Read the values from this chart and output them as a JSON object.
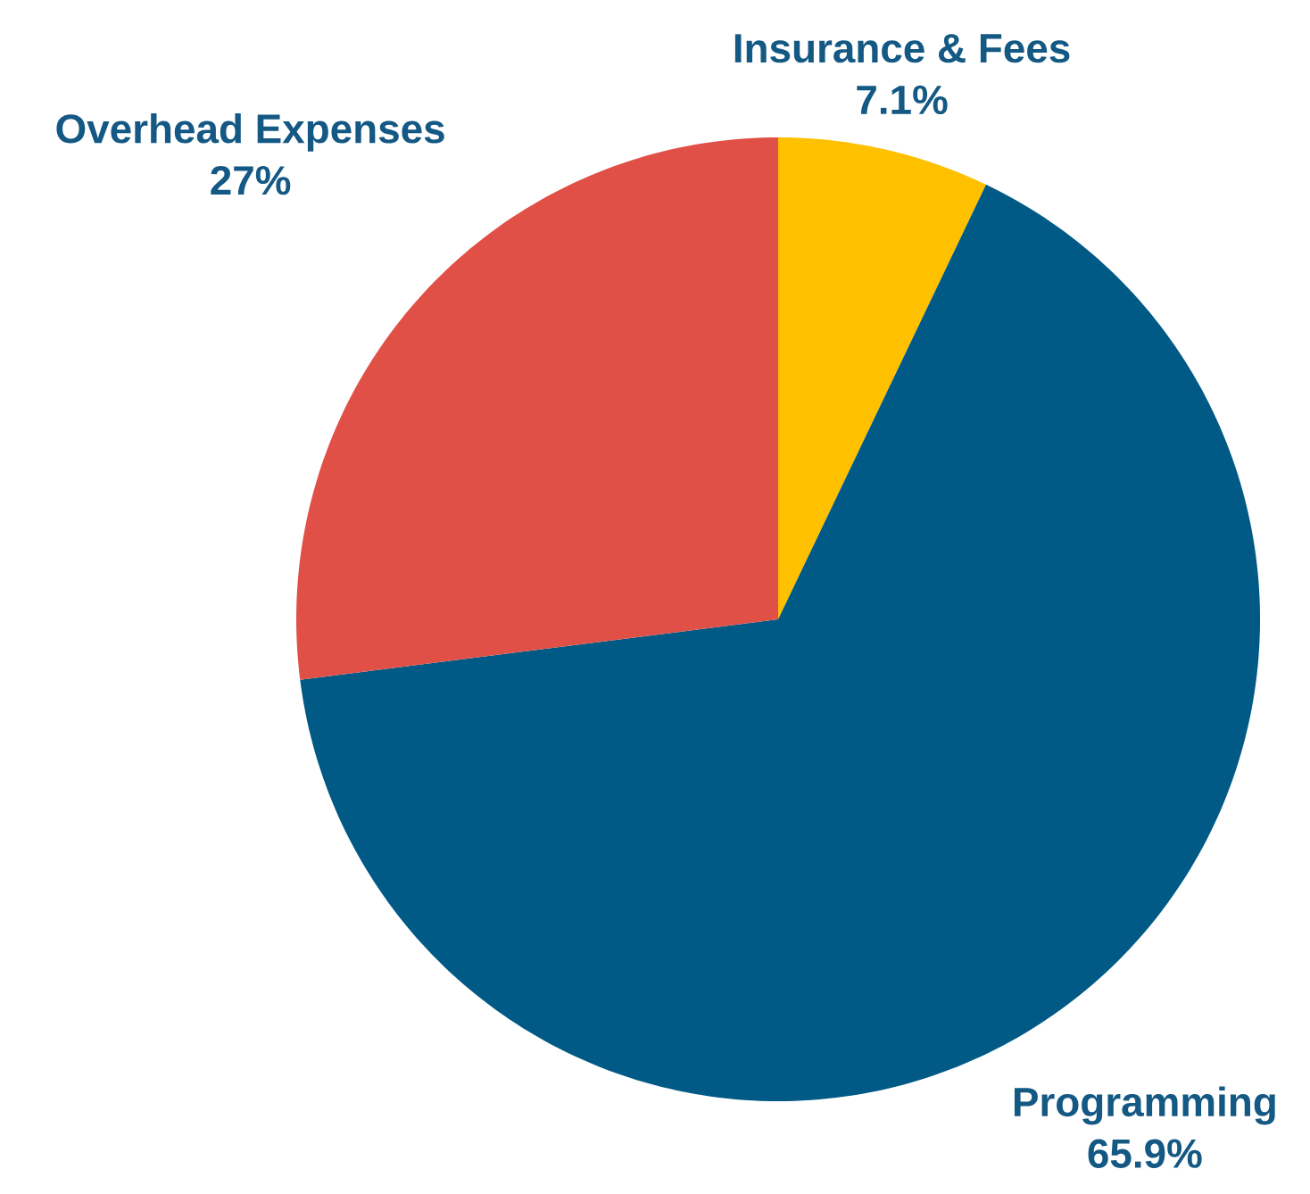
{
  "chart_data": {
    "type": "pie",
    "categories": [
      "Insurance & Fees",
      "Programming",
      "Overhead Expenses"
    ],
    "values": [
      7.1,
      65.9,
      27
    ],
    "value_labels": [
      "7.1%",
      "65.9%",
      "27%"
    ],
    "colors": [
      "#ffc000",
      "#005a85",
      "#e05046"
    ]
  }
}
